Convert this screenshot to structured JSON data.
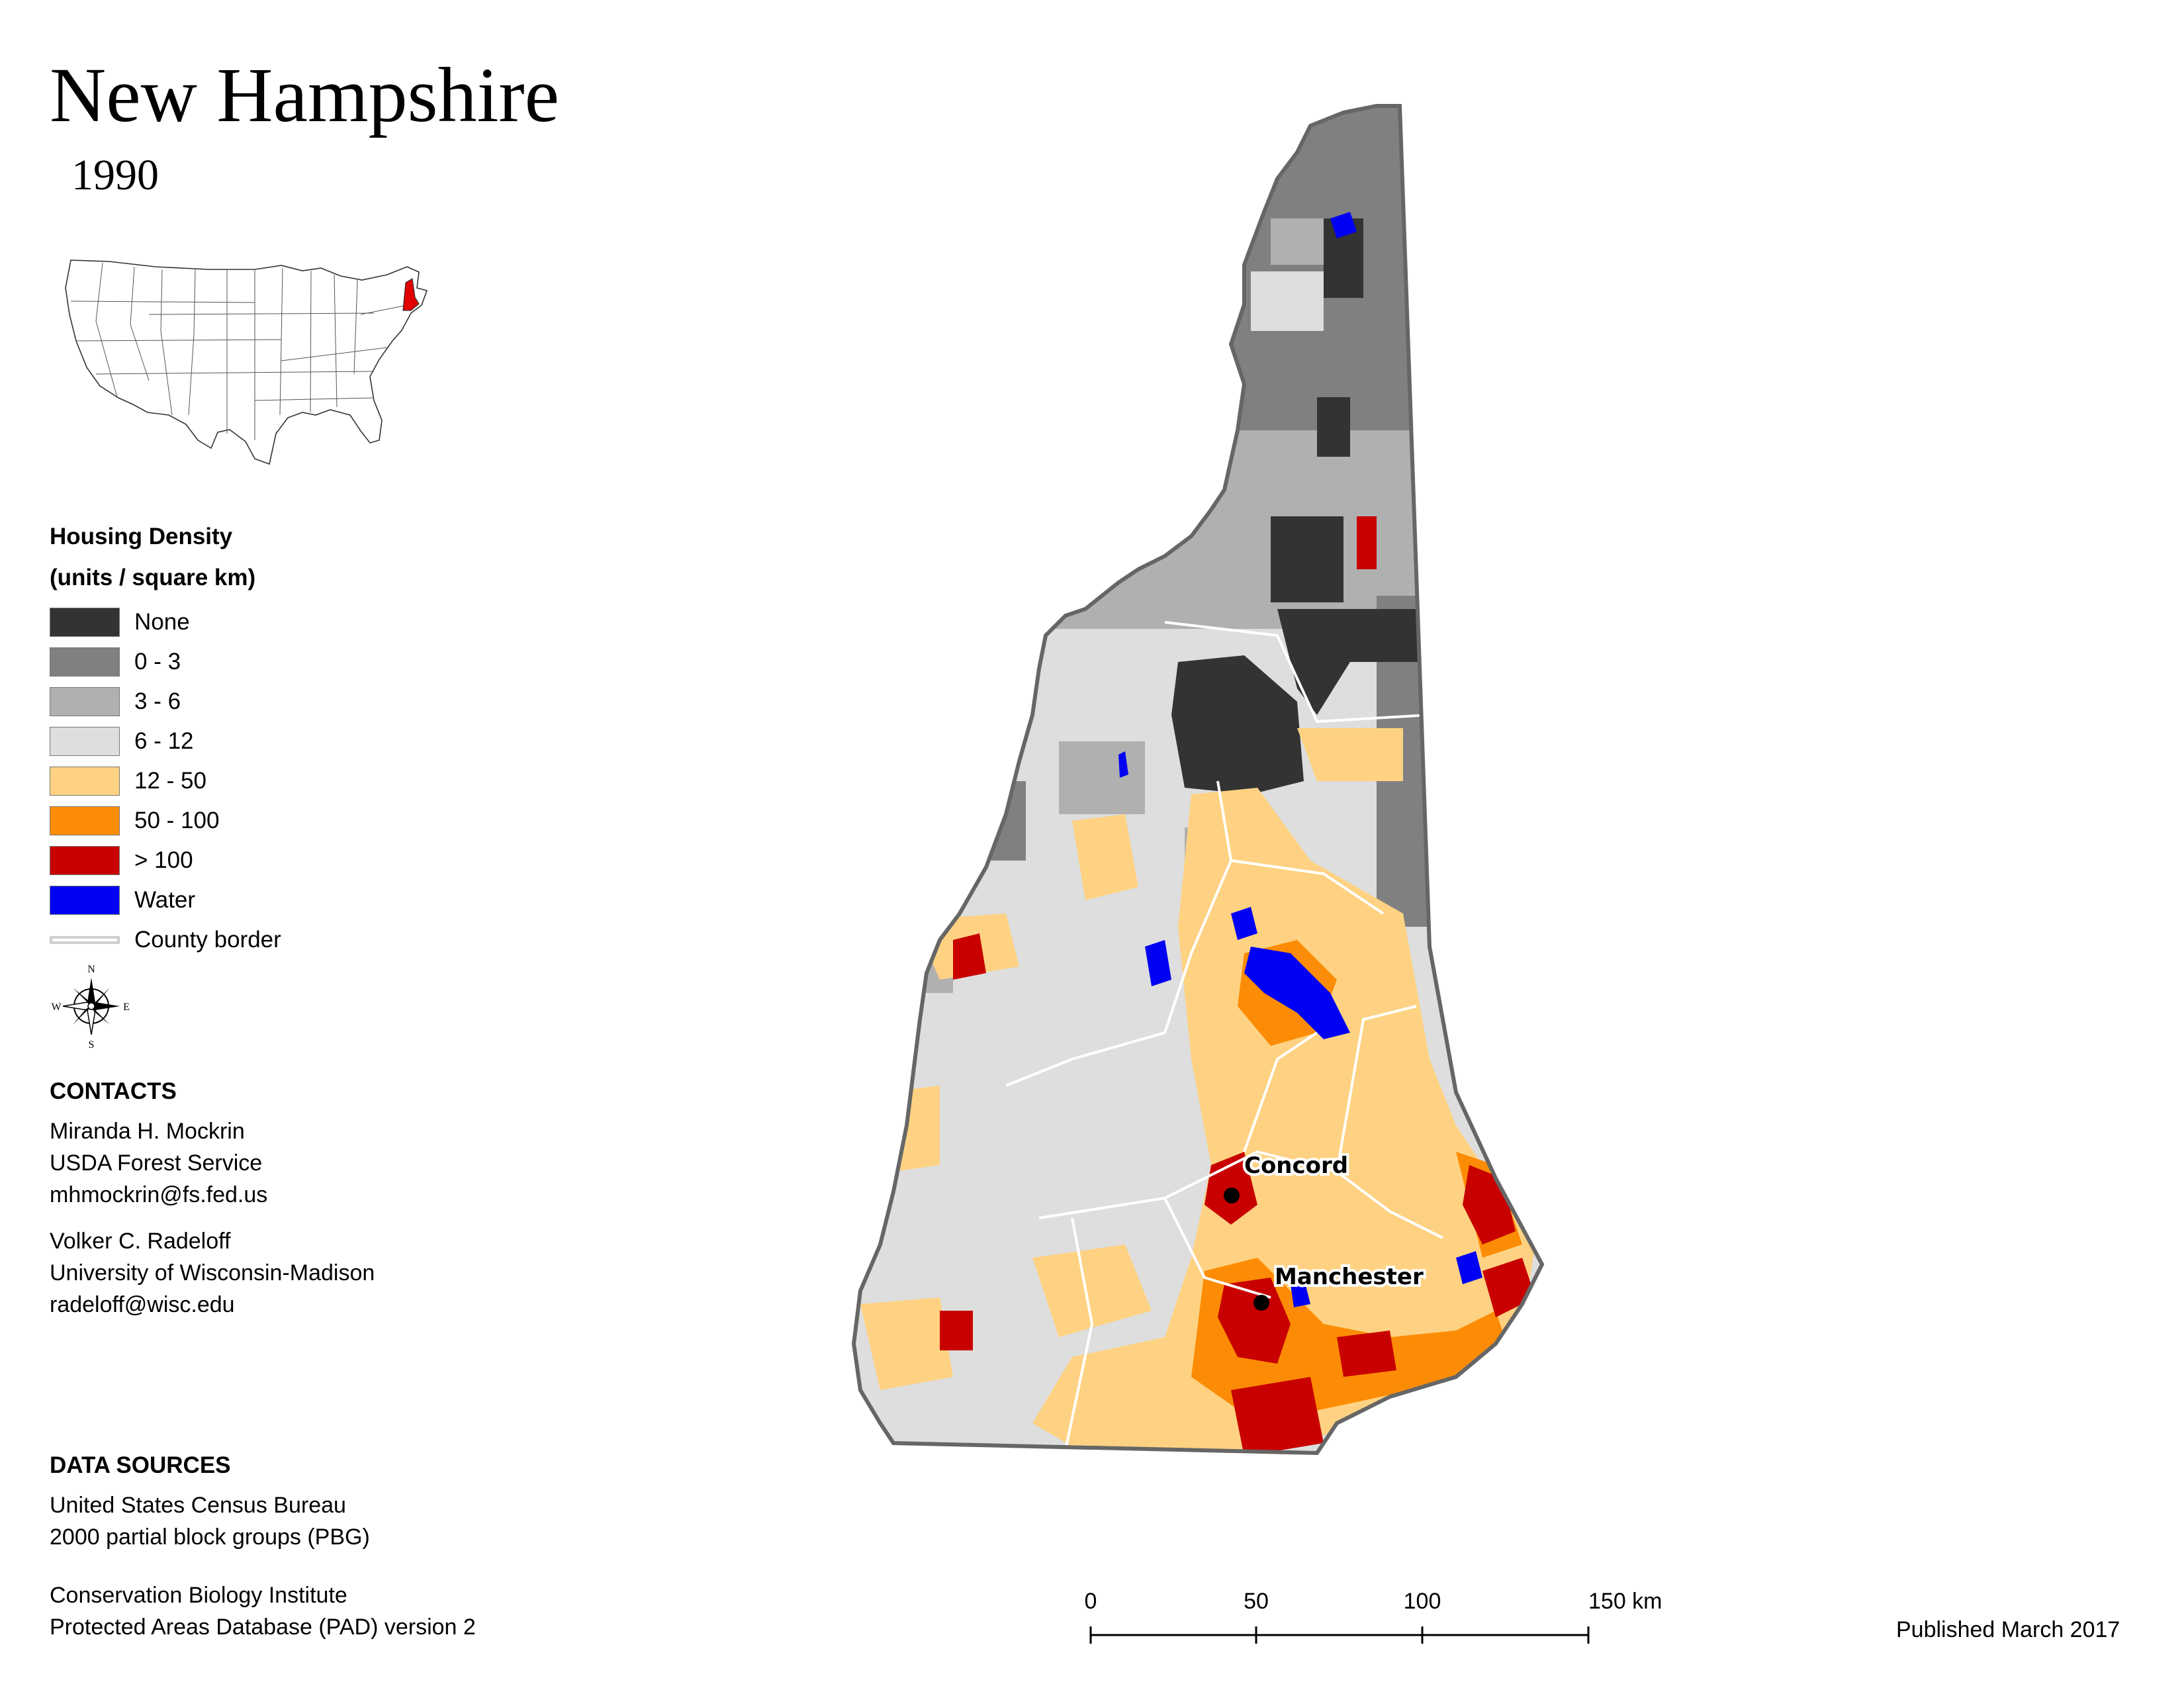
{
  "title": "New Hampshire",
  "subtitle": "1990",
  "locator_map": {
    "highlight_state": "New Hampshire",
    "highlight_color": "#e00000"
  },
  "legend": {
    "title_line1": "Housing Density",
    "title_line2": "(units / square km)",
    "items": [
      {
        "label": "None",
        "color": "#333333"
      },
      {
        "label": "0 - 3",
        "color": "#808080"
      },
      {
        "label": "3 - 6",
        "color": "#b0b0b0"
      },
      {
        "label": "6 - 12",
        "color": "#dedede"
      },
      {
        "label": "12 - 50",
        "color": "#fed282"
      },
      {
        "label": "50 - 100",
        "color": "#fc8c05"
      },
      {
        "label": "> 100",
        "color": "#c80000"
      },
      {
        "label": "Water",
        "color": "#0000f4"
      }
    ],
    "county_border_label": "County border"
  },
  "compass": {
    "n": "N",
    "s": "S",
    "e": "E",
    "w": "W"
  },
  "contacts": {
    "heading": "CONTACTS",
    "people": [
      {
        "name": "Miranda H. Mockrin",
        "org": "USDA Forest Service",
        "email": "mhmockrin@fs.fed.us"
      },
      {
        "name": "Volker C. Radeloff",
        "org": "University of Wisconsin-Madison",
        "email": "radeloff@wisc.edu"
      }
    ]
  },
  "data_sources": {
    "heading": "DATA SOURCES",
    "lines": [
      "United States Census Bureau",
      "2000 partial block groups (PBG)",
      "Conservation Biology Institute",
      "Protected Areas Database (PAD) version 2"
    ]
  },
  "cities": [
    "Concord",
    "Manchester"
  ],
  "scale_bar": {
    "ticks": [
      "0",
      "50",
      "100",
      "150 km"
    ]
  },
  "published": "Published March 2017"
}
